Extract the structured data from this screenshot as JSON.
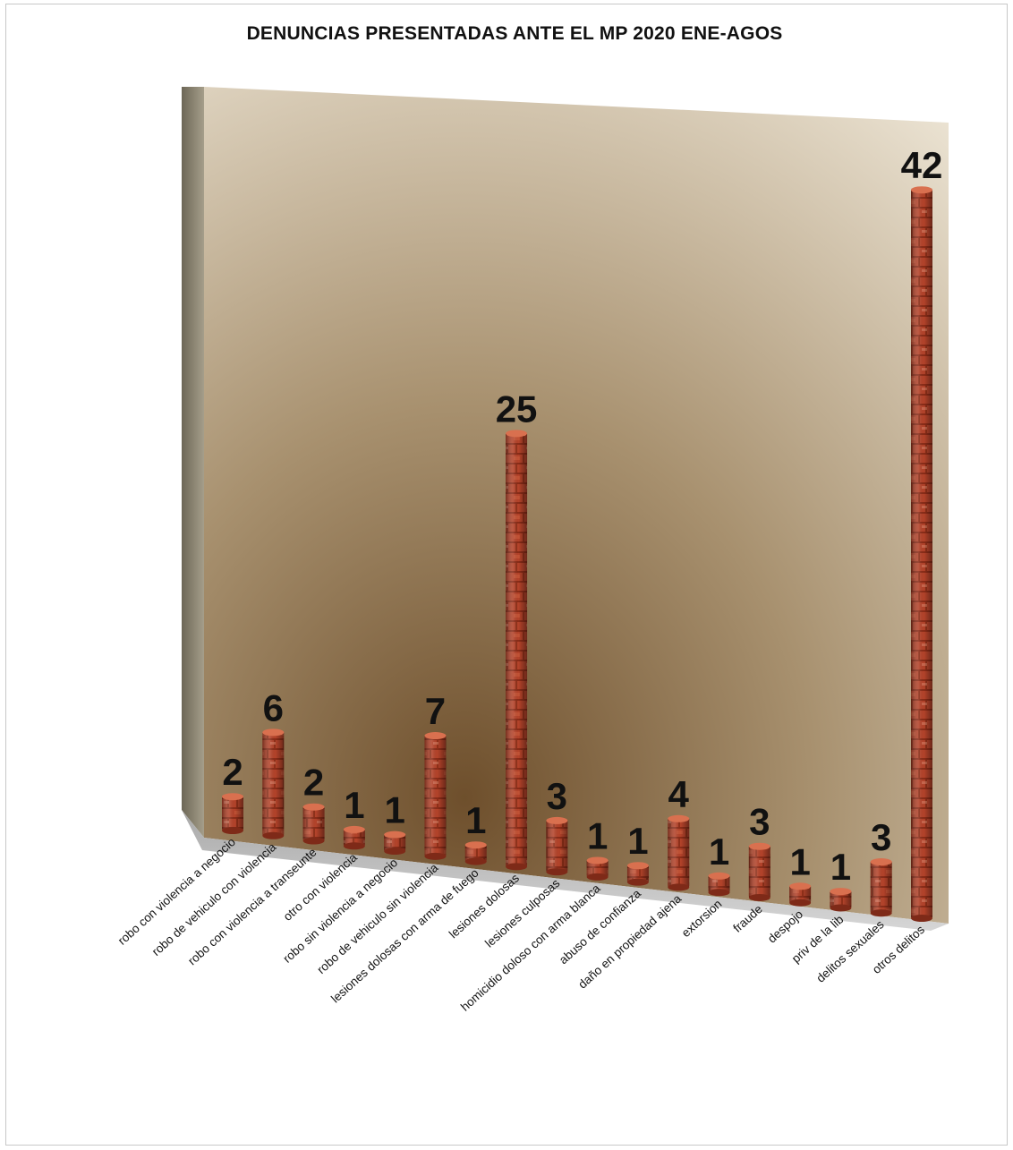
{
  "chart_data": {
    "type": "bar",
    "title": "DENUNCIAS PRESENTADAS ANTE EL MP 2020 ENE-AGOS",
    "xlabel": "",
    "ylabel": "",
    "ylim": [
      0,
      42
    ],
    "grid": false,
    "legend": "none",
    "categories": [
      "robo con violencia a negocio",
      "robo de vehiculo con violencia",
      "robo con violencia a transeunte",
      "otro con violencia",
      "robo sin violencia a negocio",
      "robo de vehiculo sin violencia",
      "lesiones dolosas con arma de fuego",
      "lesiones dolosas",
      "lesiones culposas",
      "homicidio doloso con arma blanca",
      "abuso de confianza",
      "daño en propiedad ajena",
      "extorsion",
      "fraude",
      "despojo",
      "priv de la lib",
      "delitos sexuales",
      "otros delitos"
    ],
    "values": [
      2,
      6,
      2,
      1,
      1,
      7,
      1,
      25,
      3,
      1,
      1,
      4,
      1,
      3,
      1,
      1,
      3,
      42
    ],
    "colors": {
      "bar": "#b8452b",
      "bar_dark": "#7e2a18",
      "bar_light": "#d9704f",
      "wall_light": "#e6dccb",
      "wall_dark": "#8a6a44",
      "side_wall": "#8f8a79",
      "floor": "#b9b9b9"
    }
  }
}
